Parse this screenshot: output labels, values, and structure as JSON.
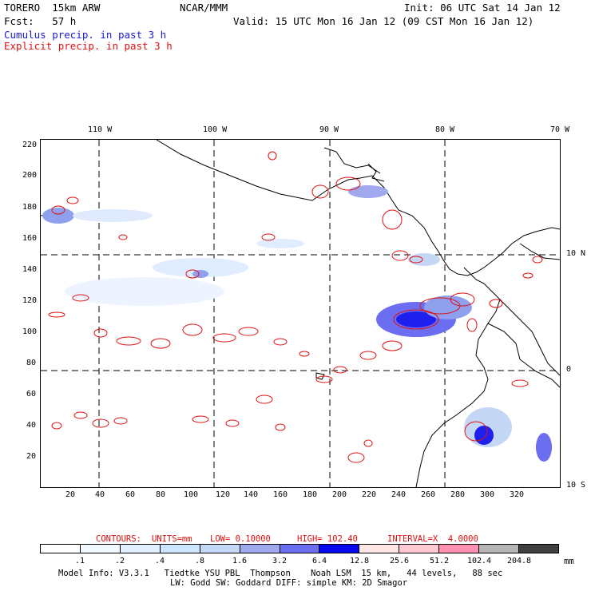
{
  "header": {
    "model": "TORERO  15km ARW",
    "org": "NCAR/MMM",
    "init": "Init: 06 UTC Sat 14 Jan 12",
    "fcst_label": "Fcst:   57 h",
    "valid": "Valid: 15 UTC Mon 16 Jan 12 (09 CST Mon 16 Jan 12)",
    "cumulus": "Cumulus precip. in past 3 h",
    "explicit": "Explicit precip. in past 3 h"
  },
  "map": {
    "lon_labels": [
      "110 W",
      "100 W",
      "90 W",
      "80 W",
      "70 W"
    ],
    "lat_labels": [
      "10 N",
      "0",
      "10 S"
    ],
    "y_grid_labels": [
      "220",
      "200",
      "180",
      "160",
      "140",
      "120",
      "100",
      "80",
      "60",
      "40",
      "20"
    ],
    "x_grid_labels": [
      "20",
      "40",
      "60",
      "80",
      "100",
      "120",
      "140",
      "160",
      "180",
      "200",
      "220",
      "240",
      "260",
      "280",
      "300",
      "320"
    ]
  },
  "footer": {
    "contours_label": "CONTOURS:",
    "units": "UNITS=mm",
    "low": "LOW= 0.10000",
    "high": "HIGH= 102.40",
    "interval": "INTERVAL=X  4.0000",
    "model_info_1": "Model Info: V3.3.1   Tiedtke YSU PBL  Thompson    Noah LSM  15 km,   44 levels,   88 sec",
    "model_info_2": "LW: Godd SW: Goddard DIFF: simple KM: 2D Smagor",
    "units_short": "mm"
  },
  "colorbar": {
    "labels": [
      ".1",
      ".2",
      ".4",
      ".8",
      "1.6",
      "3.2",
      "6.4",
      "12.8",
      "25.6",
      "51.2",
      "102.4",
      "204.8"
    ],
    "colors": [
      "#ffffff",
      "#f2f8ff",
      "#e0f0ff",
      "#cce6ff",
      "#c4d7f5",
      "#a0a8ee",
      "#6b6ef0",
      "#0808ee",
      "#ffe6e6",
      "#ffc8d2",
      "#ff8fb0",
      "#b5b5b5",
      "#404040",
      "#e0b0f5"
    ]
  }
}
